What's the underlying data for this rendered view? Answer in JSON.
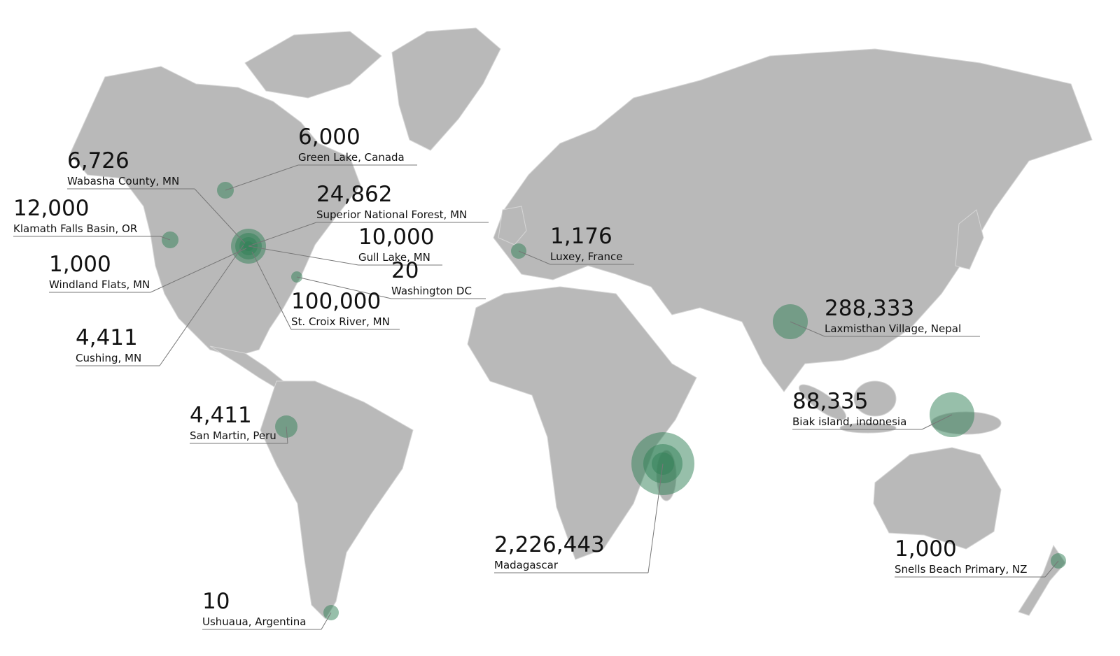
{
  "map": {
    "land_color": "#b9b9b9",
    "bubble_color": "#2f7f55",
    "markers": [
      {
        "value": "6,000",
        "place": "Green Lake, Canada"
      },
      {
        "value": "6,726",
        "place": "Wabasha County, MN"
      },
      {
        "value": "24,862",
        "place": "Superior National Forest, MN"
      },
      {
        "value": "12,000",
        "place": "Klamath Falls Basin, OR"
      },
      {
        "value": "10,000",
        "place": "Gull Lake, MN"
      },
      {
        "value": "1,000",
        "place": "Windland Flats, MN"
      },
      {
        "value": "20",
        "place": "Washington DC"
      },
      {
        "value": "100,000",
        "place": "St. Croix River, MN"
      },
      {
        "value": "4,411",
        "place": "Cushing, MN"
      },
      {
        "value": "4,411",
        "place": "San Martin, Peru"
      },
      {
        "value": "10",
        "place": "Ushuaua, Argentina"
      },
      {
        "value": "1,176",
        "place": "Luxey, France"
      },
      {
        "value": "288,333",
        "place": "Laxmisthan Village, Nepal"
      },
      {
        "value": "88,335",
        "place": "Biak island, indonesia"
      },
      {
        "value": "2,226,443",
        "place": "Madagascar"
      },
      {
        "value": "1,000",
        "place": "Snells Beach Primary, NZ"
      }
    ]
  }
}
